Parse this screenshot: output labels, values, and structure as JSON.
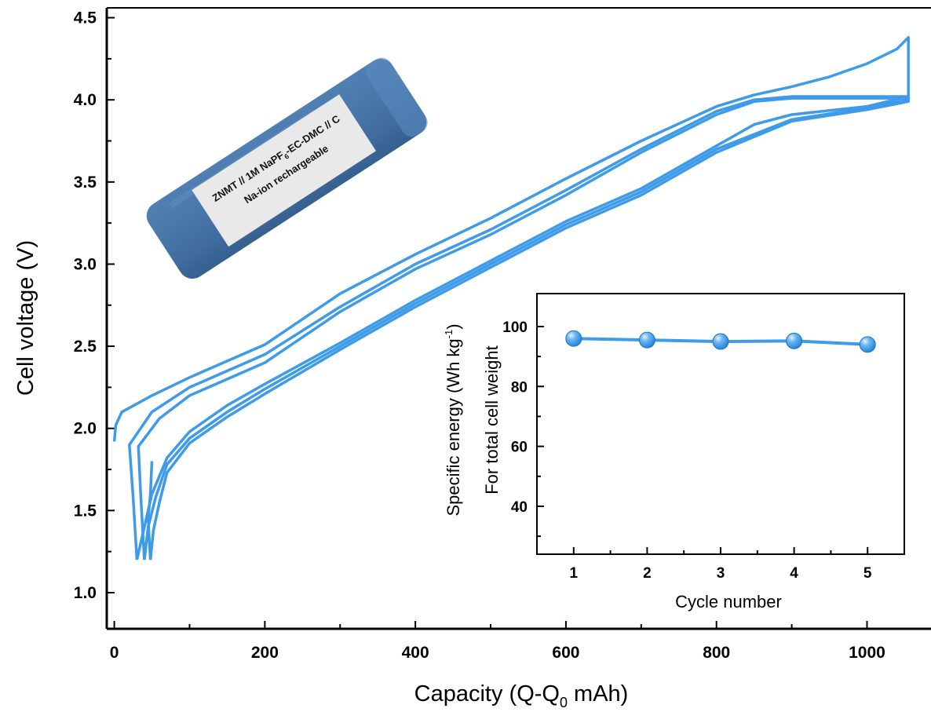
{
  "chart_data": [
    {
      "type": "line",
      "xlabel": "Capacity (Q-Q",
      "xlabel_sub": "0",
      "xlabel_unit": " mAh)",
      "ylabel": "Cell voltage (V)",
      "xlim": [
        -10,
        1085
      ],
      "ylim": [
        0.78,
        4.56
      ],
      "x_ticks": [
        "0",
        "200",
        "400",
        "600",
        "800",
        "1000"
      ],
      "y_ticks": [
        "1.0",
        "1.5",
        "2.0",
        "2.5",
        "3.0",
        "3.5",
        "4.0",
        "4.5"
      ],
      "grid": false,
      "line_color": "#3d9be9",
      "series": [
        {
          "points": [
            [
              0,
              1.92
            ],
            [
              2,
              2.02
            ],
            [
              10,
              2.1
            ],
            [
              50,
              2.2
            ],
            [
              100,
              2.31
            ],
            [
              150,
              2.41
            ],
            [
              200,
              2.51
            ],
            [
              300,
              2.82
            ],
            [
              400,
              3.06
            ],
            [
              500,
              3.28
            ],
            [
              600,
              3.52
            ],
            [
              700,
              3.75
            ],
            [
              800,
              3.96
            ],
            [
              850,
              4.03
            ],
            [
              900,
              4.08
            ],
            [
              950,
              4.14
            ],
            [
              1000,
              4.22
            ],
            [
              1040,
              4.31
            ],
            [
              1055,
              4.38
            ],
            [
              1055,
              4.02
            ],
            [
              1000,
              3.96
            ],
            [
              900,
              3.91
            ],
            [
              850,
              3.85
            ],
            [
              800,
              3.72
            ],
            [
              700,
              3.46
            ],
            [
              600,
              3.26
            ],
            [
              500,
              3.02
            ],
            [
              400,
              2.78
            ],
            [
              300,
              2.52
            ],
            [
              200,
              2.27
            ],
            [
              150,
              2.14
            ],
            [
              100,
              1.98
            ],
            [
              70,
              1.82
            ],
            [
              50,
              1.6
            ],
            [
              40,
              1.4
            ],
            [
              30,
              1.2
            ]
          ]
        },
        {
          "points": [
            [
              30,
              1.2
            ],
            [
              25,
              1.58
            ],
            [
              20,
              1.9
            ],
            [
              50,
              2.1
            ],
            [
              100,
              2.25
            ],
            [
              200,
              2.45
            ],
            [
              300,
              2.74
            ],
            [
              400,
              3.0
            ],
            [
              500,
              3.21
            ],
            [
              600,
              3.45
            ],
            [
              700,
              3.7
            ],
            [
              800,
              3.93
            ],
            [
              850,
              4.0
            ],
            [
              900,
              4.02
            ],
            [
              1000,
              4.02
            ],
            [
              1055,
              4.02
            ],
            [
              1055,
              4.0
            ],
            [
              1000,
              3.95
            ],
            [
              900,
              3.88
            ],
            [
              800,
              3.7
            ],
            [
              700,
              3.44
            ],
            [
              600,
              3.24
            ],
            [
              500,
              3.0
            ],
            [
              400,
              2.76
            ],
            [
              300,
              2.5
            ],
            [
              200,
              2.24
            ],
            [
              150,
              2.1
            ],
            [
              100,
              1.94
            ],
            [
              70,
              1.78
            ],
            [
              55,
              1.58
            ],
            [
              45,
              1.4
            ],
            [
              40,
              1.2
            ]
          ]
        },
        {
          "points": [
            [
              40,
              1.2
            ],
            [
              35,
              1.6
            ],
            [
              32,
              1.89
            ],
            [
              60,
              2.06
            ],
            [
              100,
              2.2
            ],
            [
              200,
              2.4
            ],
            [
              300,
              2.71
            ],
            [
              400,
              2.97
            ],
            [
              500,
              3.18
            ],
            [
              600,
              3.42
            ],
            [
              700,
              3.68
            ],
            [
              800,
              3.91
            ],
            [
              850,
              3.99
            ],
            [
              900,
              4.01
            ],
            [
              1000,
              4.01
            ],
            [
              1055,
              4.01
            ],
            [
              1055,
              3.99
            ],
            [
              1000,
              3.94
            ],
            [
              900,
              3.87
            ],
            [
              800,
              3.68
            ],
            [
              700,
              3.42
            ],
            [
              600,
              3.22
            ],
            [
              500,
              2.98
            ],
            [
              400,
              2.74
            ],
            [
              300,
              2.48
            ],
            [
              200,
              2.21
            ],
            [
              150,
              2.07
            ],
            [
              100,
              1.91
            ],
            [
              70,
              1.73
            ],
            [
              60,
              1.55
            ],
            [
              52,
              1.38
            ],
            [
              48,
              1.2
            ]
          ]
        },
        {
          "points": [
            [
              48,
              1.2
            ],
            [
              45,
              1.45
            ],
            [
              48,
              1.6
            ],
            [
              50,
              1.8
            ]
          ]
        }
      ],
      "inset": {
        "type": "scatter",
        "x": [
          1,
          2,
          3,
          4,
          5
        ],
        "values": [
          96,
          95.5,
          95,
          95.2,
          94
        ],
        "xlabel": "Cycle number",
        "ylabel_line1": "Specific energy (Wh kg",
        "ylabel_sup": "-1",
        "ylabel_close": ")",
        "ylabel_line2": "For total cell weight",
        "xlim": [
          0.5,
          5.5
        ],
        "ylim": [
          24,
          111
        ],
        "x_ticks": [
          "1",
          "2",
          "3",
          "4",
          "5"
        ],
        "y_ticks": [
          "40",
          "60",
          "80",
          "100"
        ],
        "marker_color": "#3d9be9"
      }
    }
  ],
  "battery_label": {
    "line1": "Na-ion rechargeable",
    "line2_prefix": "ZNMT // 1M NaPF",
    "line2_sub": "6",
    "line2_suffix": "-EC-DMC // C"
  }
}
